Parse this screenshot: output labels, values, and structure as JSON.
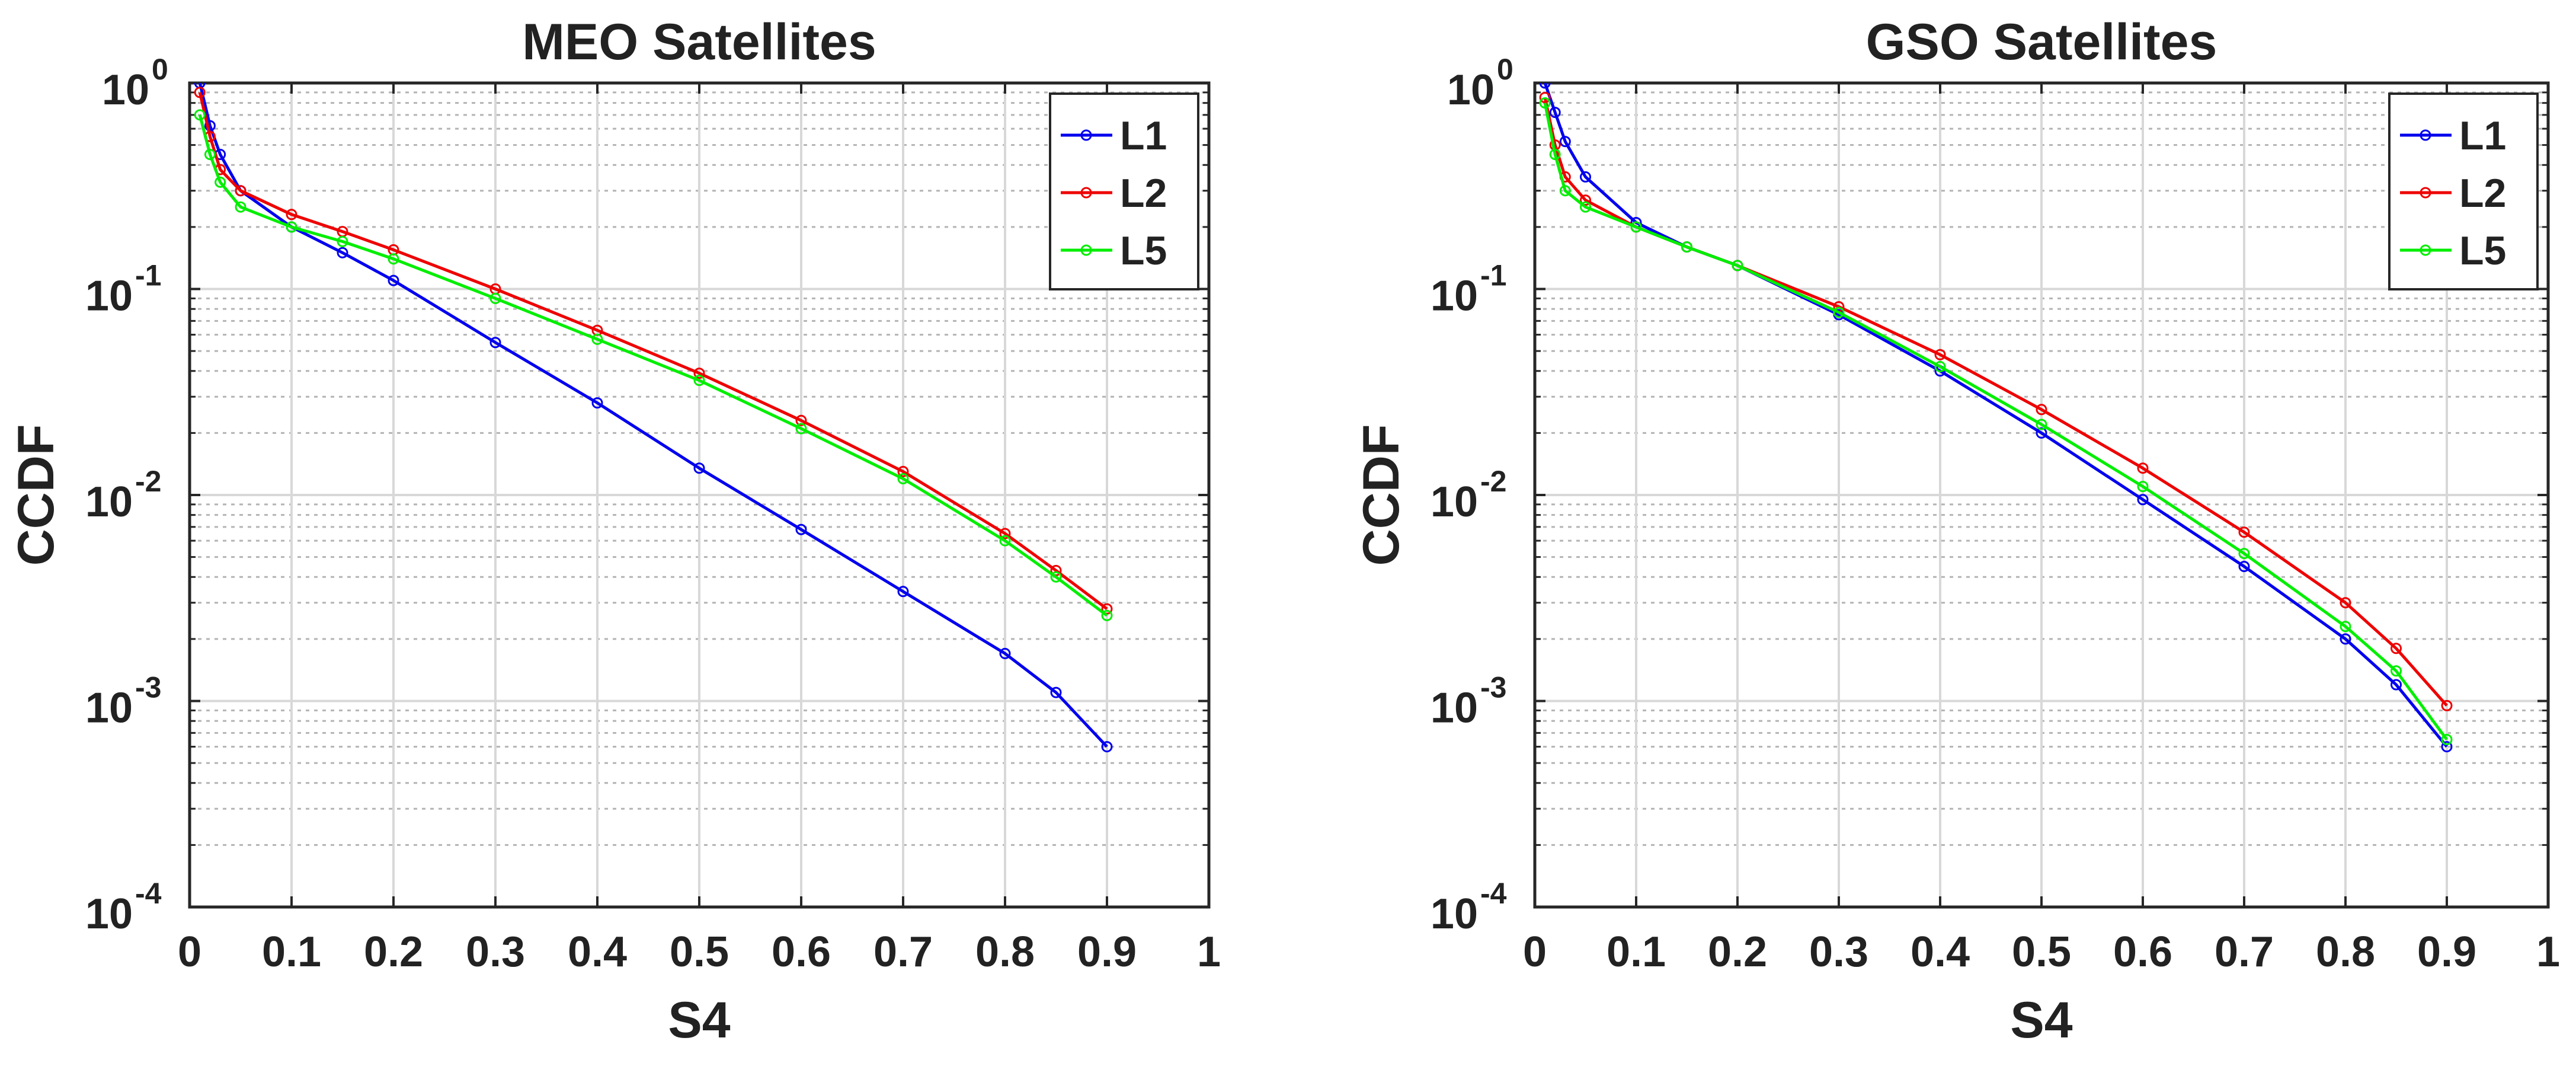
{
  "chart_data": [
    {
      "type": "line",
      "title": "MEO Satellites",
      "xlabel": "S4",
      "ylabel": "CCDF",
      "xlim": [
        0,
        1
      ],
      "ylim": [
        0.0001,
        1
      ],
      "yscale": "log",
      "grid": true,
      "legend_position": "top-right",
      "x_ticks": [
        "0",
        "0.1",
        "0.2",
        "0.3",
        "0.4",
        "0.5",
        "0.6",
        "0.7",
        "0.8",
        "0.9",
        "1"
      ],
      "y_ticks": [
        {
          "base": "10",
          "exp": "-4"
        },
        {
          "base": "10",
          "exp": "-3"
        },
        {
          "base": "10",
          "exp": "-2"
        },
        {
          "base": "10",
          "exp": "-1"
        },
        {
          "base": "10",
          "exp": "0"
        }
      ],
      "series": [
        {
          "name": "L1",
          "color": "#0000ee",
          "x": [
            0.01,
            0.02,
            0.03,
            0.05,
            0.1,
            0.15,
            0.2,
            0.3,
            0.4,
            0.5,
            0.6,
            0.7,
            0.8,
            0.85,
            0.9
          ],
          "y": [
            1.0,
            0.62,
            0.45,
            0.3,
            0.2,
            0.15,
            0.11,
            0.055,
            0.028,
            0.0135,
            0.0068,
            0.0034,
            0.0017,
            0.0011,
            0.0006
          ]
        },
        {
          "name": "L2",
          "color": "#ee0000",
          "x": [
            0.01,
            0.02,
            0.03,
            0.05,
            0.1,
            0.15,
            0.2,
            0.3,
            0.4,
            0.5,
            0.6,
            0.7,
            0.8,
            0.85,
            0.9
          ],
          "y": [
            0.9,
            0.55,
            0.38,
            0.3,
            0.23,
            0.19,
            0.155,
            0.1,
            0.063,
            0.039,
            0.023,
            0.013,
            0.0065,
            0.0043,
            0.0028
          ]
        },
        {
          "name": "L5",
          "color": "#00ee00",
          "x": [
            0.01,
            0.02,
            0.03,
            0.05,
            0.1,
            0.15,
            0.2,
            0.3,
            0.4,
            0.5,
            0.6,
            0.7,
            0.8,
            0.85,
            0.9
          ],
          "y": [
            0.7,
            0.45,
            0.33,
            0.25,
            0.2,
            0.17,
            0.14,
            0.09,
            0.057,
            0.036,
            0.021,
            0.012,
            0.006,
            0.004,
            0.0026
          ]
        }
      ]
    },
    {
      "type": "line",
      "title": "GSO Satellites",
      "xlabel": "S4",
      "ylabel": "CCDF",
      "xlim": [
        0,
        1
      ],
      "ylim": [
        0.0001,
        1
      ],
      "yscale": "log",
      "grid": true,
      "legend_position": "top-right",
      "x_ticks": [
        "0",
        "0.1",
        "0.2",
        "0.3",
        "0.4",
        "0.5",
        "0.6",
        "0.7",
        "0.8",
        "0.9",
        "1"
      ],
      "y_ticks": [
        {
          "base": "10",
          "exp": "-4"
        },
        {
          "base": "10",
          "exp": "-3"
        },
        {
          "base": "10",
          "exp": "-2"
        },
        {
          "base": "10",
          "exp": "-1"
        },
        {
          "base": "10",
          "exp": "0"
        }
      ],
      "series": [
        {
          "name": "L1",
          "color": "#0000ee",
          "x": [
            0.01,
            0.02,
            0.03,
            0.05,
            0.1,
            0.15,
            0.2,
            0.3,
            0.4,
            0.5,
            0.6,
            0.7,
            0.8,
            0.85,
            0.9
          ],
          "y": [
            1.0,
            0.72,
            0.52,
            0.35,
            0.21,
            0.16,
            0.13,
            0.075,
            0.04,
            0.02,
            0.0095,
            0.0045,
            0.002,
            0.0012,
            0.0006
          ]
        },
        {
          "name": "L2",
          "color": "#ee0000",
          "x": [
            0.01,
            0.02,
            0.03,
            0.05,
            0.1,
            0.15,
            0.2,
            0.3,
            0.4,
            0.5,
            0.6,
            0.7,
            0.8,
            0.85,
            0.9
          ],
          "y": [
            0.85,
            0.5,
            0.35,
            0.27,
            0.2,
            0.16,
            0.13,
            0.082,
            0.048,
            0.026,
            0.0135,
            0.0066,
            0.003,
            0.0018,
            0.00095
          ]
        },
        {
          "name": "L5",
          "color": "#00ee00",
          "x": [
            0.01,
            0.02,
            0.03,
            0.05,
            0.1,
            0.15,
            0.2,
            0.3,
            0.4,
            0.5,
            0.6,
            0.7,
            0.8,
            0.85,
            0.9
          ],
          "y": [
            0.8,
            0.45,
            0.3,
            0.25,
            0.2,
            0.16,
            0.13,
            0.077,
            0.042,
            0.022,
            0.011,
            0.0052,
            0.0023,
            0.0014,
            0.00065
          ]
        }
      ]
    }
  ]
}
